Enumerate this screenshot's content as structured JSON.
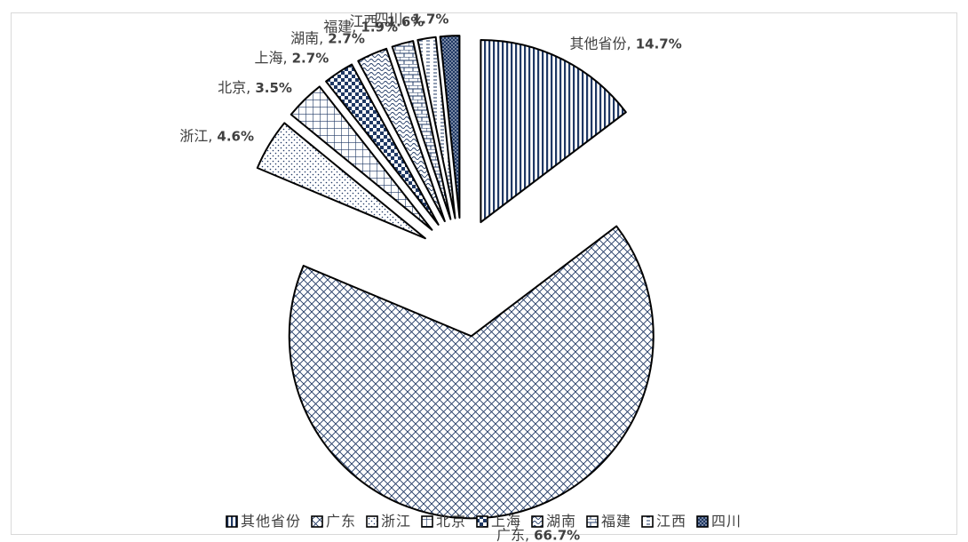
{
  "chart_data": {
    "type": "pie",
    "title": "",
    "legend_position": "bottom",
    "exploded": true,
    "slices": [
      {
        "name": "其他省份",
        "value": 14.7,
        "label": "14.7%",
        "pattern": "vlines"
      },
      {
        "name": "广东",
        "value": 66.7,
        "label": "66.7%",
        "pattern": "crosshatch"
      },
      {
        "name": "浙江",
        "value": 4.6,
        "label": "4.6%",
        "pattern": "dots"
      },
      {
        "name": "北京",
        "value": 3.5,
        "label": "3.5%",
        "pattern": "grid"
      },
      {
        "name": "上海",
        "value": 2.7,
        "label": "2.7%",
        "pattern": "checker"
      },
      {
        "name": "湖南",
        "value": 2.7,
        "label": "2.7%",
        "pattern": "waves"
      },
      {
        "name": "福建",
        "value": 1.9,
        "label": "1.9%",
        "pattern": "bricks"
      },
      {
        "name": "江西",
        "value": 1.6,
        "label": "1.6%",
        "pattern": "dashes"
      },
      {
        "name": "四川",
        "value": 1.7,
        "label": "1.7%",
        "pattern": "densedots"
      }
    ]
  },
  "colors": {
    "pattern": "#1f3864",
    "outline": "#000000",
    "text": "#404040",
    "border": "#d9d9d9"
  },
  "separator": ", "
}
